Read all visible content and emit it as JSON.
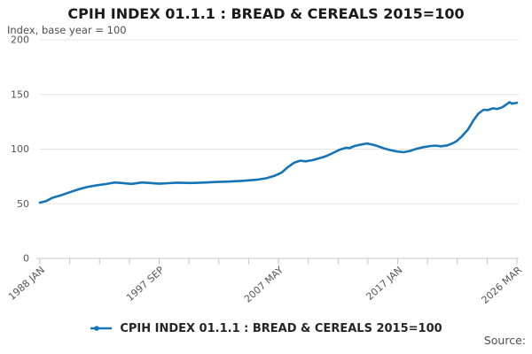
{
  "header": {
    "title": "CPIH INDEX 01.1.1 : BREAD & CEREALS 2015=100",
    "subtitle": "Index, base year = 100"
  },
  "legend": {
    "label": "CPIH INDEX 01.1.1 : BREAD & CEREALS 2015=100"
  },
  "footer": {
    "source_label": "Source:"
  },
  "chart": {
    "colors": {
      "line": "#1574b6",
      "grid": "#e4e4e4",
      "axis": "#c9c9c9",
      "tick": "#b9c2d8",
      "text_muted": "#545454"
    },
    "y_ticks": [
      200,
      150,
      100,
      50,
      0
    ],
    "x_tick_labels": [
      "1988 JAN",
      "1997 SEP",
      "2007 MAY",
      "2017 JAN",
      "2026 MAR"
    ],
    "minor_tick_count": 17
  },
  "chart_data": {
    "type": "line",
    "title": "CPIH INDEX 01.1.1 : BREAD & CEREALS 2015=100",
    "ylabel": "Index, base year = 100",
    "ylim": [
      0,
      200
    ],
    "x_range": [
      "1988-01",
      "2026-03"
    ],
    "grid": "horizontal",
    "legend_position": "bottom",
    "series": [
      {
        "name": "CPIH INDEX 01.1.1 : BREAD & CEREALS 2015=100",
        "color": "#1574b6",
        "points": [
          [
            "1988-01",
            51
          ],
          [
            "1988-07",
            52.5
          ],
          [
            "1989-01",
            55.5
          ],
          [
            "1989-10",
            58
          ],
          [
            "1990-07",
            61
          ],
          [
            "1991-03",
            63.5
          ],
          [
            "1991-11",
            65.5
          ],
          [
            "1992-08",
            67
          ],
          [
            "1993-04",
            68
          ],
          [
            "1994-01",
            69.5
          ],
          [
            "1994-09",
            68.9
          ],
          [
            "1995-05",
            68.2
          ],
          [
            "1996-03",
            69.5
          ],
          [
            "1996-11",
            69
          ],
          [
            "1997-08",
            68.3
          ],
          [
            "1998-04",
            68.8
          ],
          [
            "1999-01",
            69.3
          ],
          [
            "2000-02",
            69
          ],
          [
            "2001-02",
            69.4
          ],
          [
            "2002-03",
            70
          ],
          [
            "2003-04",
            70.4
          ],
          [
            "2004-04",
            71
          ],
          [
            "2005-05",
            72
          ],
          [
            "2006-02",
            73.3
          ],
          [
            "2006-10",
            75.5
          ],
          [
            "2007-05",
            78.5
          ],
          [
            "2007-11",
            83.5
          ],
          [
            "2008-05",
            87.5
          ],
          [
            "2008-11",
            89.5
          ],
          [
            "2009-04",
            88.8
          ],
          [
            "2009-10",
            89.8
          ],
          [
            "2010-04",
            91.3
          ],
          [
            "2010-11",
            93.3
          ],
          [
            "2011-07",
            96.8
          ],
          [
            "2012-01",
            99.5
          ],
          [
            "2012-07",
            101.3
          ],
          [
            "2012-10",
            100.8
          ],
          [
            "2013-03",
            102.8
          ],
          [
            "2013-10",
            104.3
          ],
          [
            "2014-03",
            105.2
          ],
          [
            "2014-08",
            104.2
          ],
          [
            "2015-01",
            102.8
          ],
          [
            "2015-07",
            100.8
          ],
          [
            "2016-01",
            99.2
          ],
          [
            "2016-08",
            97.8
          ],
          [
            "2017-02",
            97.2
          ],
          [
            "2017-08",
            98.3
          ],
          [
            "2018-02",
            100.2
          ],
          [
            "2018-09",
            101.8
          ],
          [
            "2019-04",
            102.8
          ],
          [
            "2019-09",
            103.2
          ],
          [
            "2020-02",
            102.6
          ],
          [
            "2020-08",
            103.4
          ],
          [
            "2021-01",
            105.3
          ],
          [
            "2021-05",
            107.2
          ],
          [
            "2021-10",
            111.5
          ],
          [
            "2022-04",
            118
          ],
          [
            "2022-09",
            126
          ],
          [
            "2023-02",
            132.5
          ],
          [
            "2023-07",
            136
          ],
          [
            "2023-11",
            135.7
          ],
          [
            "2024-04",
            137.3
          ],
          [
            "2024-08",
            136.8
          ],
          [
            "2025-01",
            138.3
          ],
          [
            "2025-04",
            140.3
          ],
          [
            "2025-08",
            143
          ],
          [
            "2025-10",
            141.6
          ],
          [
            "2026-01",
            142
          ],
          [
            "2026-03",
            142.4
          ]
        ]
      }
    ]
  }
}
